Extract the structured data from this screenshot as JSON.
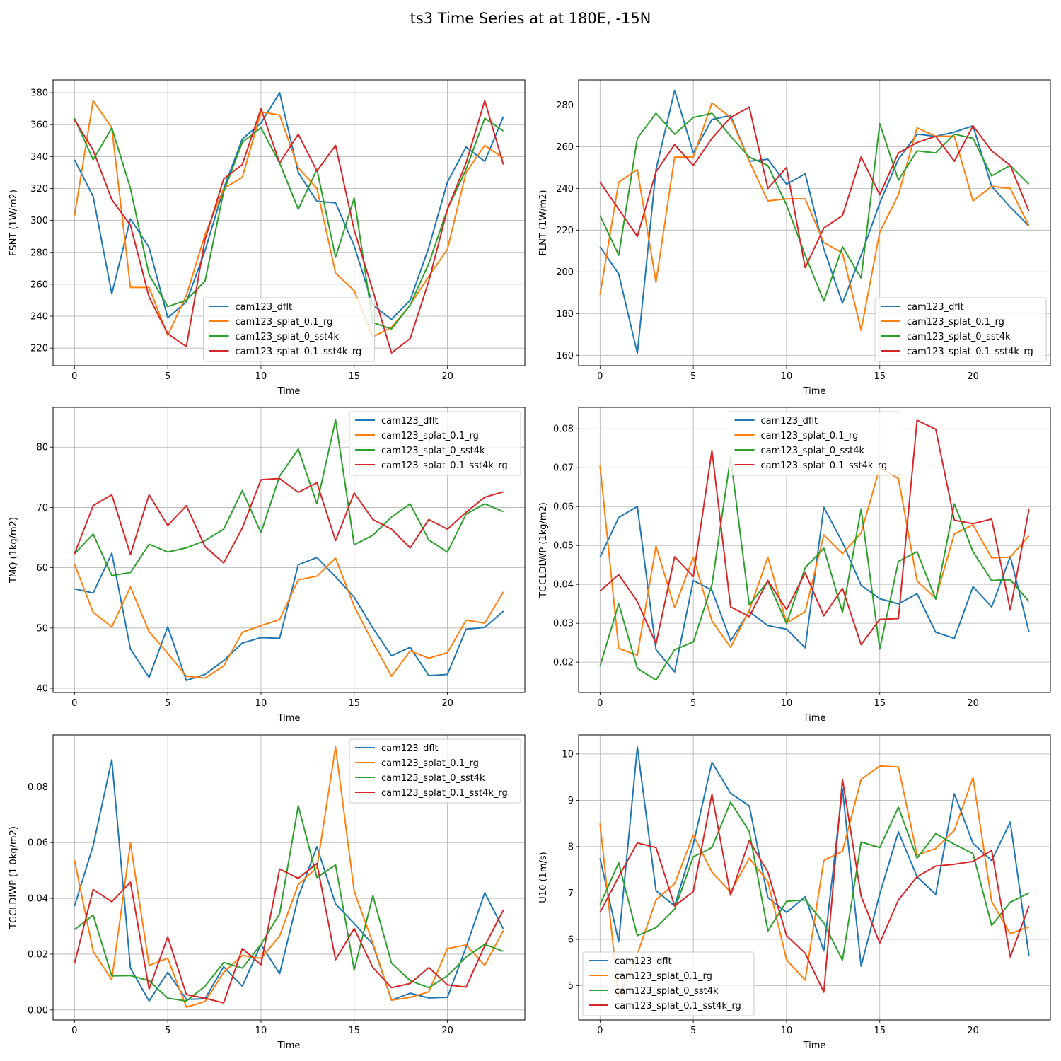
{
  "figure_title": "ts3 Time Series at at 180E, -15N",
  "legend_labels": [
    "cam123_dflt",
    "cam123_splat_0.1_rg",
    "cam123_splat_0_sst4k",
    "cam123_splat_0.1_sst4k_rg"
  ],
  "colors": [
    "#1f77b4",
    "#ff7f0e",
    "#2ca02c",
    "#d62728"
  ],
  "chart_data": [
    {
      "type": "line",
      "id": "fsnt",
      "xlabel": "Time",
      "ylabel": "FSNT (1W/m2)",
      "xlim": [
        -1.15,
        24.15
      ],
      "ylim": [
        209,
        388
      ],
      "xticks": [
        0,
        5,
        10,
        15,
        20
      ],
      "xtick_labels": [
        "0",
        "5",
        "10",
        "15",
        "20"
      ],
      "yticks": [
        220,
        240,
        260,
        280,
        300,
        320,
        340,
        360,
        380
      ],
      "ytick_labels": [
        "220",
        "240",
        "260",
        "280",
        "300",
        "320",
        "340",
        "360",
        "380"
      ],
      "legend_loc": "lower center",
      "x": [
        0,
        1,
        2,
        3,
        4,
        5,
        6,
        7,
        8,
        9,
        10,
        11,
        12,
        13,
        14,
        15,
        16,
        17,
        18,
        19,
        20,
        21,
        22,
        23
      ],
      "series": [
        {
          "name": "cam123_dflt",
          "values": [
            338,
            315,
            254,
            301,
            283,
            239,
            249,
            281,
            320,
            351,
            361,
            380,
            330,
            312,
            311,
            284,
            247,
            238,
            250,
            283,
            324,
            346,
            337,
            365
          ]
        },
        {
          "name": "cam123_splat_0.1_rg",
          "values": [
            303,
            375,
            358,
            258,
            258,
            228,
            253,
            291,
            320,
            327,
            368,
            366,
            333,
            320,
            267,
            256,
            227,
            233,
            247,
            265,
            282,
            330,
            347,
            339
          ]
        },
        {
          "name": "cam123_splat_0_sst4k",
          "values": [
            364,
            338,
            358,
            320,
            266,
            246,
            250,
            262,
            318,
            349,
            358,
            336,
            307,
            332,
            277,
            314,
            236,
            232,
            247,
            273,
            307,
            332,
            364,
            356
          ]
        },
        {
          "name": "cam123_splat_0.1_sst4k_rg",
          "values": [
            363,
            344,
            313,
            297,
            252,
            229,
            221,
            288,
            326,
            335,
            370,
            336,
            354,
            331,
            347,
            294,
            256,
            217,
            226,
            262,
            307,
            336,
            375,
            335
          ]
        }
      ]
    },
    {
      "type": "line",
      "id": "flnt",
      "xlabel": "Time",
      "ylabel": "FLNT (1W/m2)",
      "xlim": [
        -1.15,
        24.15
      ],
      "ylim": [
        155,
        292
      ],
      "xticks": [
        0,
        5,
        10,
        15,
        20
      ],
      "xtick_labels": [
        "0",
        "5",
        "10",
        "15",
        "20"
      ],
      "yticks": [
        160,
        180,
        200,
        220,
        240,
        260,
        280
      ],
      "ytick_labels": [
        "160",
        "180",
        "200",
        "220",
        "240",
        "260",
        "280"
      ],
      "legend_loc": "lower right",
      "x": [
        0,
        1,
        2,
        3,
        4,
        5,
        6,
        7,
        8,
        9,
        10,
        11,
        12,
        13,
        14,
        15,
        16,
        17,
        18,
        19,
        20,
        21,
        22,
        23
      ],
      "series": [
        {
          "name": "cam123_dflt",
          "values": [
            212,
            199,
            161,
            249,
            287,
            257,
            273,
            275,
            253,
            254,
            242,
            247,
            211,
            185,
            208,
            233,
            254,
            266,
            265,
            267,
            270,
            241,
            231,
            222
          ]
        },
        {
          "name": "cam123_splat_0.1_rg",
          "values": [
            189,
            243,
            249,
            195,
            255,
            255,
            281,
            274,
            253,
            234,
            235,
            235,
            214,
            209,
            172,
            219,
            237,
            269,
            265,
            265,
            234,
            241,
            240,
            222
          ]
        },
        {
          "name": "cam123_splat_0_sst4k",
          "values": [
            227,
            208,
            264,
            276,
            266,
            274,
            276,
            265,
            255,
            251,
            232,
            208,
            186,
            212,
            197,
            271,
            244,
            258,
            257,
            266,
            264,
            246,
            251,
            242
          ]
        },
        {
          "name": "cam123_splat_0.1_sst4k_rg",
          "values": [
            243,
            230,
            217,
            248,
            261,
            251,
            264,
            274,
            279,
            240,
            250,
            202,
            221,
            227,
            255,
            237,
            257,
            262,
            265,
            253,
            270,
            258,
            251,
            229
          ]
        }
      ]
    },
    {
      "type": "line",
      "id": "tmq",
      "xlabel": "Time",
      "ylabel": "TMQ (1kg/m2)",
      "xlim": [
        -1.15,
        24.15
      ],
      "ylim": [
        39.3,
        86.6
      ],
      "xticks": [
        0,
        5,
        10,
        15,
        20
      ],
      "xtick_labels": [
        "0",
        "5",
        "10",
        "15",
        "20"
      ],
      "yticks": [
        40,
        50,
        60,
        70,
        80
      ],
      "ytick_labels": [
        "40",
        "50",
        "60",
        "70",
        "80"
      ],
      "legend_loc": "upper right",
      "x": [
        0,
        1,
        2,
        3,
        4,
        5,
        6,
        7,
        8,
        9,
        10,
        11,
        12,
        13,
        14,
        15,
        16,
        17,
        18,
        19,
        20,
        21,
        22,
        23
      ],
      "series": [
        {
          "name": "cam123_dflt",
          "values": [
            56.5,
            55.8,
            62.4,
            46.5,
            41.8,
            50.2,
            41.3,
            42.3,
            44.6,
            47.5,
            48.4,
            48.3,
            60.5,
            61.7,
            58.5,
            55.1,
            50.0,
            45.4,
            46.8,
            42.1,
            42.3,
            49.8,
            50.1,
            52.8
          ]
        },
        {
          "name": "cam123_splat_0.1_rg",
          "values": [
            60.6,
            52.6,
            50.2,
            56.8,
            49.4,
            45.8,
            42.0,
            41.7,
            43.7,
            49.3,
            50.4,
            51.4,
            58.0,
            58.6,
            61.6,
            53.6,
            47.6,
            42.0,
            46.2,
            45.0,
            45.9,
            51.3,
            50.8,
            56.0
          ]
        },
        {
          "name": "cam123_splat_0_sst4k",
          "values": [
            62.3,
            65.6,
            58.7,
            59.2,
            63.9,
            62.6,
            63.3,
            64.5,
            66.4,
            72.8,
            65.8,
            75.2,
            79.7,
            70.6,
            84.5,
            63.8,
            65.4,
            68.4,
            70.6,
            64.6,
            62.6,
            68.9,
            70.6,
            69.3
          ]
        },
        {
          "name": "cam123_splat_0.1_sst4k_rg",
          "values": [
            62.3,
            70.3,
            72.1,
            62.2,
            72.1,
            67.0,
            70.3,
            63.5,
            60.8,
            66.6,
            74.6,
            74.8,
            72.5,
            74.1,
            64.5,
            72.4,
            68.0,
            66.4,
            63.3,
            68.0,
            66.4,
            69.2,
            71.7,
            72.6
          ]
        }
      ]
    },
    {
      "type": "line",
      "id": "tgcldlwp",
      "xlabel": "Time",
      "ylabel": "TGCLDLWP (1kg/m2)",
      "xlim": [
        -1.15,
        24.15
      ],
      "ylim": [
        0.0122,
        0.0855
      ],
      "xticks": [
        0,
        5,
        10,
        15,
        20
      ],
      "xtick_labels": [
        "0",
        "5",
        "10",
        "15",
        "20"
      ],
      "yticks": [
        0.02,
        0.03,
        0.04,
        0.05,
        0.06,
        0.07,
        0.08
      ],
      "ytick_labels": [
        "0.02",
        "0.03",
        "0.04",
        "0.05",
        "0.06",
        "0.07",
        "0.08"
      ],
      "legend_loc": "upper center",
      "x": [
        0,
        1,
        2,
        3,
        4,
        5,
        6,
        7,
        8,
        9,
        10,
        11,
        12,
        13,
        14,
        15,
        16,
        17,
        18,
        19,
        20,
        21,
        22,
        23
      ],
      "series": [
        {
          "name": "cam123_dflt",
          "values": [
            0.047,
            0.0572,
            0.06,
            0.0232,
            0.0175,
            0.041,
            0.0385,
            0.0255,
            0.033,
            0.0294,
            0.0285,
            0.0237,
            0.0598,
            0.0508,
            0.0398,
            0.0363,
            0.035,
            0.0376,
            0.0277,
            0.0261,
            0.0394,
            0.0342,
            0.0472,
            0.0278
          ]
        },
        {
          "name": "cam123_splat_0.1_rg",
          "values": [
            0.0705,
            0.0235,
            0.0218,
            0.0498,
            0.034,
            0.047,
            0.0306,
            0.0238,
            0.0333,
            0.047,
            0.0301,
            0.033,
            0.0527,
            0.0479,
            0.0532,
            0.07,
            0.0672,
            0.0409,
            0.0364,
            0.053,
            0.0553,
            0.0468,
            0.047,
            0.0525
          ]
        },
        {
          "name": "cam123_splat_0_sst4k",
          "values": [
            0.019,
            0.035,
            0.0184,
            0.0154,
            0.0232,
            0.0252,
            0.0399,
            0.0727,
            0.0347,
            0.0408,
            0.0299,
            0.0443,
            0.0493,
            0.0328,
            0.0594,
            0.0234,
            0.0459,
            0.0484,
            0.0362,
            0.0607,
            0.0484,
            0.041,
            0.0412,
            0.0356
          ]
        },
        {
          "name": "cam123_splat_0.1_sst4k_rg",
          "values": [
            0.0383,
            0.0425,
            0.0356,
            0.0247,
            0.0471,
            0.042,
            0.0744,
            0.0342,
            0.0317,
            0.041,
            0.0335,
            0.043,
            0.0319,
            0.039,
            0.0245,
            0.031,
            0.0312,
            0.0822,
            0.0799,
            0.0565,
            0.0556,
            0.0568,
            0.0334,
            0.0593
          ]
        }
      ]
    },
    {
      "type": "line",
      "id": "tgcldiwp",
      "xlabel": "Time",
      "ylabel": "TGCLDIWP (1.0kg/m2)",
      "xlim": [
        -1.15,
        24.15
      ],
      "ylim": [
        -0.0036,
        0.0986
      ],
      "xticks": [
        0,
        5,
        10,
        15,
        20
      ],
      "xtick_labels": [
        "0",
        "5",
        "10",
        "15",
        "20"
      ],
      "yticks": [
        0.0,
        0.02,
        0.04,
        0.06,
        0.08
      ],
      "ytick_labels": [
        "0.00",
        "0.02",
        "0.04",
        "0.06",
        "0.08"
      ],
      "legend_loc": "upper right",
      "x": [
        0,
        1,
        2,
        3,
        4,
        5,
        6,
        7,
        8,
        9,
        10,
        11,
        12,
        13,
        14,
        15,
        16,
        17,
        18,
        19,
        20,
        21,
        22,
        23
      ],
      "series": [
        {
          "name": "cam123_dflt",
          "values": [
            0.0372,
            0.0589,
            0.0897,
            0.015,
            0.0032,
            0.0135,
            0.0038,
            0.004,
            0.0155,
            0.0085,
            0.0235,
            0.013,
            0.0405,
            0.0585,
            0.038,
            0.031,
            0.0235,
            0.0035,
            0.006,
            0.0043,
            0.0045,
            0.0225,
            0.042,
            0.029
          ]
        },
        {
          "name": "cam123_splat_0.1_rg",
          "values": [
            0.0537,
            0.021,
            0.0108,
            0.0598,
            0.016,
            0.0185,
            0.001,
            0.003,
            0.0135,
            0.0195,
            0.0185,
            0.0265,
            0.045,
            0.051,
            0.0943,
            0.0425,
            0.024,
            0.0035,
            0.0045,
            0.0065,
            0.022,
            0.0233,
            0.016,
            0.0285
          ]
        },
        {
          "name": "cam123_splat_0_sst4k",
          "values": [
            0.0288,
            0.034,
            0.0122,
            0.0123,
            0.0105,
            0.0042,
            0.0032,
            0.0085,
            0.017,
            0.015,
            0.0235,
            0.0345,
            0.0732,
            0.0475,
            0.052,
            0.0143,
            0.041,
            0.0168,
            0.0105,
            0.008,
            0.0122,
            0.019,
            0.0235,
            0.021
          ]
        },
        {
          "name": "cam123_splat_0.1_sst4k_rg",
          "values": [
            0.0167,
            0.0432,
            0.0388,
            0.0458,
            0.0075,
            0.0262,
            0.0055,
            0.0042,
            0.0025,
            0.022,
            0.0162,
            0.0505,
            0.0472,
            0.0525,
            0.018,
            0.0292,
            0.0152,
            0.008,
            0.0095,
            0.0152,
            0.009,
            0.0082,
            0.023,
            0.0358
          ]
        }
      ]
    },
    {
      "type": "line",
      "id": "u10",
      "xlabel": "Time",
      "ylabel": "U10 (1m/s)",
      "xlim": [
        -1.15,
        24.15
      ],
      "ylim": [
        4.26,
        10.41
      ],
      "xticks": [
        0,
        5,
        10,
        15,
        20
      ],
      "xtick_labels": [
        "0",
        "5",
        "10",
        "15",
        "20"
      ],
      "yticks": [
        5,
        6,
        7,
        8,
        9,
        10
      ],
      "ytick_labels": [
        "5",
        "6",
        "7",
        "8",
        "9",
        "10"
      ],
      "legend_loc": "lower left",
      "x": [
        0,
        1,
        2,
        3,
        4,
        5,
        6,
        7,
        8,
        9,
        10,
        11,
        12,
        13,
        14,
        15,
        16,
        17,
        18,
        19,
        20,
        21,
        22,
        23
      ],
      "series": [
        {
          "name": "cam123_dflt",
          "values": [
            7.75,
            5.95,
            10.15,
            7.05,
            6.72,
            8.05,
            9.82,
            9.15,
            8.88,
            6.9,
            6.58,
            6.92,
            5.75,
            9.25,
            5.42,
            6.98,
            8.32,
            7.35,
            6.97,
            9.14,
            8.07,
            7.7,
            8.53,
            5.65
          ]
        },
        {
          "name": "cam123_splat_0.1_rg",
          "values": [
            8.5,
            4.75,
            5.68,
            6.85,
            7.2,
            8.25,
            7.45,
            7.02,
            7.75,
            7.25,
            5.56,
            5.12,
            7.7,
            7.9,
            9.45,
            9.74,
            9.72,
            7.82,
            7.96,
            8.35,
            9.49,
            6.82,
            6.12,
            6.27
          ]
        },
        {
          "name": "cam123_splat_0_sst4k",
          "values": [
            6.75,
            7.65,
            6.08,
            6.25,
            6.65,
            7.78,
            7.98,
            8.96,
            8.33,
            6.18,
            6.82,
            6.85,
            6.35,
            5.55,
            8.1,
            7.98,
            8.85,
            7.75,
            8.28,
            8.05,
            7.85,
            6.3,
            6.8,
            7.0
          ]
        },
        {
          "name": "cam123_splat_0.1_sst4k_rg",
          "values": [
            6.58,
            7.35,
            8.08,
            7.98,
            6.72,
            7.03,
            9.13,
            6.95,
            8.13,
            7.45,
            6.08,
            5.7,
            4.86,
            9.45,
            6.93,
            5.92,
            6.85,
            7.35,
            7.58,
            7.62,
            7.68,
            7.92,
            5.62,
            6.72
          ]
        }
      ]
    }
  ]
}
